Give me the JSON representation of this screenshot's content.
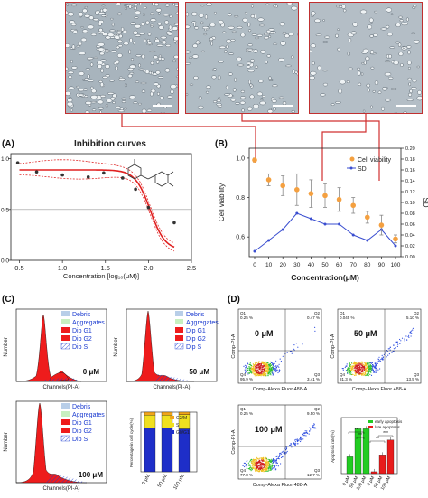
{
  "panel_labels": {
    "a": "(A)",
    "b": "(B)",
    "c": "(C)",
    "d": "(D)"
  },
  "panel_a": {
    "title": "Inhibition curves",
    "xlabel": "Concentration [log₁₀(μM)]",
    "xticks": [
      "0.5",
      "1.0",
      "1.5",
      "2.0",
      "2.5"
    ],
    "yticks": [
      "1.0",
      "0.5",
      "0.0"
    ]
  },
  "panel_b": {
    "ylabel": "Cell viability",
    "y2label": "SD",
    "xlabel": "Concentration(μM)",
    "legend": [
      "Cell viability",
      "SD"
    ],
    "yticks": [
      "1.0",
      "0.8",
      "0.6"
    ],
    "y2ticks": [
      "0.20",
      "0.18",
      "0.16",
      "0.14",
      "0.12",
      "0.10",
      "0.08",
      "0.06",
      "0.04",
      "0.02",
      "0.00"
    ]
  },
  "panel_c": {
    "legend": [
      "Debris",
      "Aggregates",
      "Dip G1",
      "Dip G2",
      "Dip S"
    ],
    "ylabel": "Number",
    "xlabel": "Channels(PI-A)",
    "doses": [
      "0 μM",
      "50 μM",
      "100 μM"
    ],
    "bar_ylabel": "Percentage in cell cycle(%)",
    "bar_legend": [
      "G2/M",
      "S",
      "G0/G1"
    ],
    "bar_categories": [
      "0 μM",
      "50 μM",
      "100 μM"
    ]
  },
  "panel_d": {
    "xlabel": "Comp-Alexa Fluor 488-A",
    "ylabel": "Comp-PI-A",
    "doses": [
      "0 μM",
      "50 μM",
      "100 μM"
    ],
    "plots": [
      {
        "q1": "Q1",
        "q1v": "0.25 %",
        "q2": "Q2",
        "q2v": "0.47 %",
        "q3": "Q3",
        "q3v": "3.41 %",
        "q4": "Q4",
        "q4v": "95.9 %"
      },
      {
        "q1": "Q1",
        "q1v": "0.045 %",
        "q2": "Q2",
        "q2v": "5.10 %",
        "q3": "Q3",
        "q3v": "13.5 %",
        "q4": "Q4",
        "q4v": "81.3 %"
      },
      {
        "q1": "Q1",
        "q1v": "0.25 %",
        "q2": "Q2",
        "q2v": "9.50 %",
        "q3": "Q3",
        "q3v": "12.7 %",
        "q4": "Q4",
        "q4v": "77.8 %"
      }
    ],
    "bar_ylabel": "Apoptosis rate(%)",
    "bar_legend": [
      "early apoptosis",
      "late apoptosis"
    ],
    "bar_categories": [
      "0 μM",
      "50 μM",
      "100 μM"
    ],
    "sig": [
      "**",
      "**",
      "**",
      "***"
    ]
  },
  "chart_data": [
    {
      "type": "line",
      "panel": "A",
      "title": "Inhibition curves",
      "xlabel": "Concentration [log₁₀(μM)]",
      "xlim": [
        0.4,
        2.5
      ],
      "ylim": [
        0.0,
        1.05
      ],
      "x": [
        0.48,
        0.7,
        1.0,
        1.3,
        1.48,
        1.7,
        1.85,
        2.0,
        2.3
      ],
      "values": [
        0.96,
        0.87,
        0.84,
        0.82,
        0.86,
        0.81,
        0.7,
        0.52,
        0.37
      ],
      "reference_line": 0.5
    },
    {
      "type": "line",
      "panel": "B",
      "xlabel": "Concentration(μM)",
      "ylabel": "Cell viability",
      "y2label": "SD",
      "categories": [
        "0",
        "10",
        "20",
        "30",
        "40",
        "50",
        "60",
        "70",
        "80",
        "90",
        "100"
      ],
      "ylim": [
        0.5,
        1.05
      ],
      "y2lim": [
        0.0,
        0.2
      ],
      "series": [
        {
          "name": "Cell viability",
          "axis": "left",
          "values": [
            0.99,
            0.89,
            0.86,
            0.84,
            0.82,
            0.81,
            0.79,
            0.76,
            0.7,
            0.66,
            0.59
          ]
        },
        {
          "name": "SD",
          "axis": "right",
          "values": [
            0.01,
            0.03,
            0.05,
            0.08,
            0.07,
            0.06,
            0.06,
            0.04,
            0.03,
            0.05,
            0.02
          ]
        }
      ]
    },
    {
      "type": "bar",
      "panel": "C",
      "stacked": true,
      "ylabel": "Percentage in cell cycle(%)",
      "categories": [
        "0 μM",
        "50 μM",
        "100 μM"
      ],
      "ylim": [
        0,
        100
      ],
      "series": [
        {
          "name": "G0/G1",
          "values": [
            74,
            73,
            72
          ]
        },
        {
          "name": "S",
          "values": [
            21,
            22,
            24
          ]
        },
        {
          "name": "G2/M",
          "values": [
            5,
            5,
            4
          ]
        }
      ]
    },
    {
      "type": "bar",
      "panel": "D",
      "ylabel": "Apoptosis rate(%)",
      "categories": [
        "0 μM",
        "50 μM",
        "100 μM"
      ],
      "ylim": [
        0,
        15
      ],
      "series": [
        {
          "name": "early apoptosis",
          "values": [
            4.5,
            12.0,
            12.0
          ]
        },
        {
          "name": "late apoptosis",
          "values": [
            0.5,
            5.0,
            9.0
          ]
        }
      ]
    }
  ]
}
